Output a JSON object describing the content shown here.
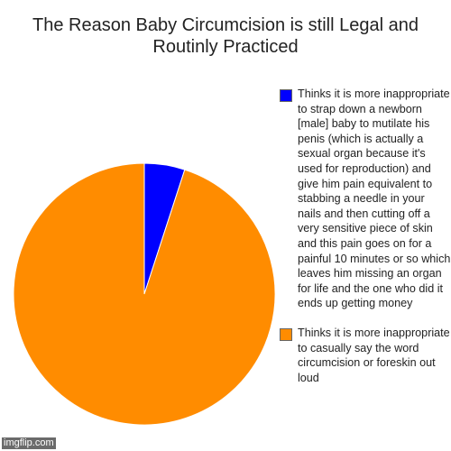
{
  "chart_data": {
    "type": "pie",
    "title": "The Reason Baby Circumcision is still Legal and Routinly Practiced",
    "slices": [
      {
        "label": "Thinks it is more inappropriate to strap down a newborn [male] baby to mutilate his penis (which is actually a sexual organ because it's used for reproduction) and give him pain equivalent to stabbing a needle in your nails and then cutting off a very sensitive piece of skin and this pain goes on for a painful 10 minutes or so which leaves him missing an organ for life and the one who did it ends up getting money",
        "value": 5,
        "color": "#0000ff"
      },
      {
        "label": "Thinks it is more inappropriate to casually say the word circumcision or foreskin out loud",
        "value": 95,
        "color": "#ff8c00"
      }
    ],
    "legend_position": "right"
  },
  "watermark": "imgflip.com"
}
